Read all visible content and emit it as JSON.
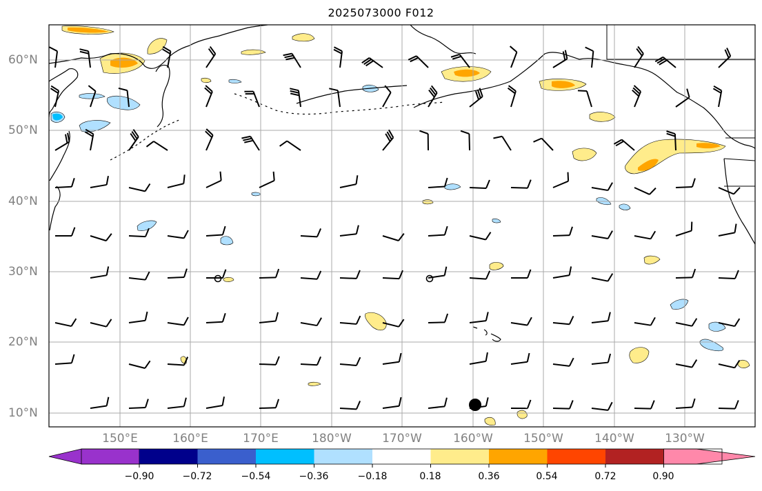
{
  "title": "2025073000 F012",
  "map": {
    "projection": "equirectangular",
    "region": "North Pacific",
    "lon_range": [
      "140°E",
      "120°W"
    ],
    "lat_range": [
      "8°N",
      "65°N"
    ],
    "gridlines": true,
    "lat_labels": [
      "60°N",
      "50°N",
      "40°N",
      "30°N",
      "20°N",
      "10°N"
    ],
    "lon_labels": [
      "150°E",
      "160°E",
      "170°E",
      "180°W",
      "170°W",
      "160°W",
      "150°W",
      "140°W",
      "130°W"
    ],
    "storm_marker": {
      "lon_label": "159°W",
      "lat_label": "11°N"
    },
    "wind_barbs": "black barbs on a regular grid",
    "coastlines": "black"
  },
  "colorbar": {
    "ticks": [
      "−0.90",
      "−0.72",
      "−0.54",
      "−0.36",
      "−0.18",
      "0.18",
      "0.36",
      "0.54",
      "0.72",
      "0.90"
    ],
    "colors": [
      "#9932cc",
      "#00008b",
      "#3a5fcd",
      "#00bfff",
      "#b0e0ff",
      "#ffffff",
      "#ffec8b",
      "#ffa500",
      "#ff4500",
      "#b22222",
      "#ff88aa"
    ],
    "extend": "both"
  }
}
